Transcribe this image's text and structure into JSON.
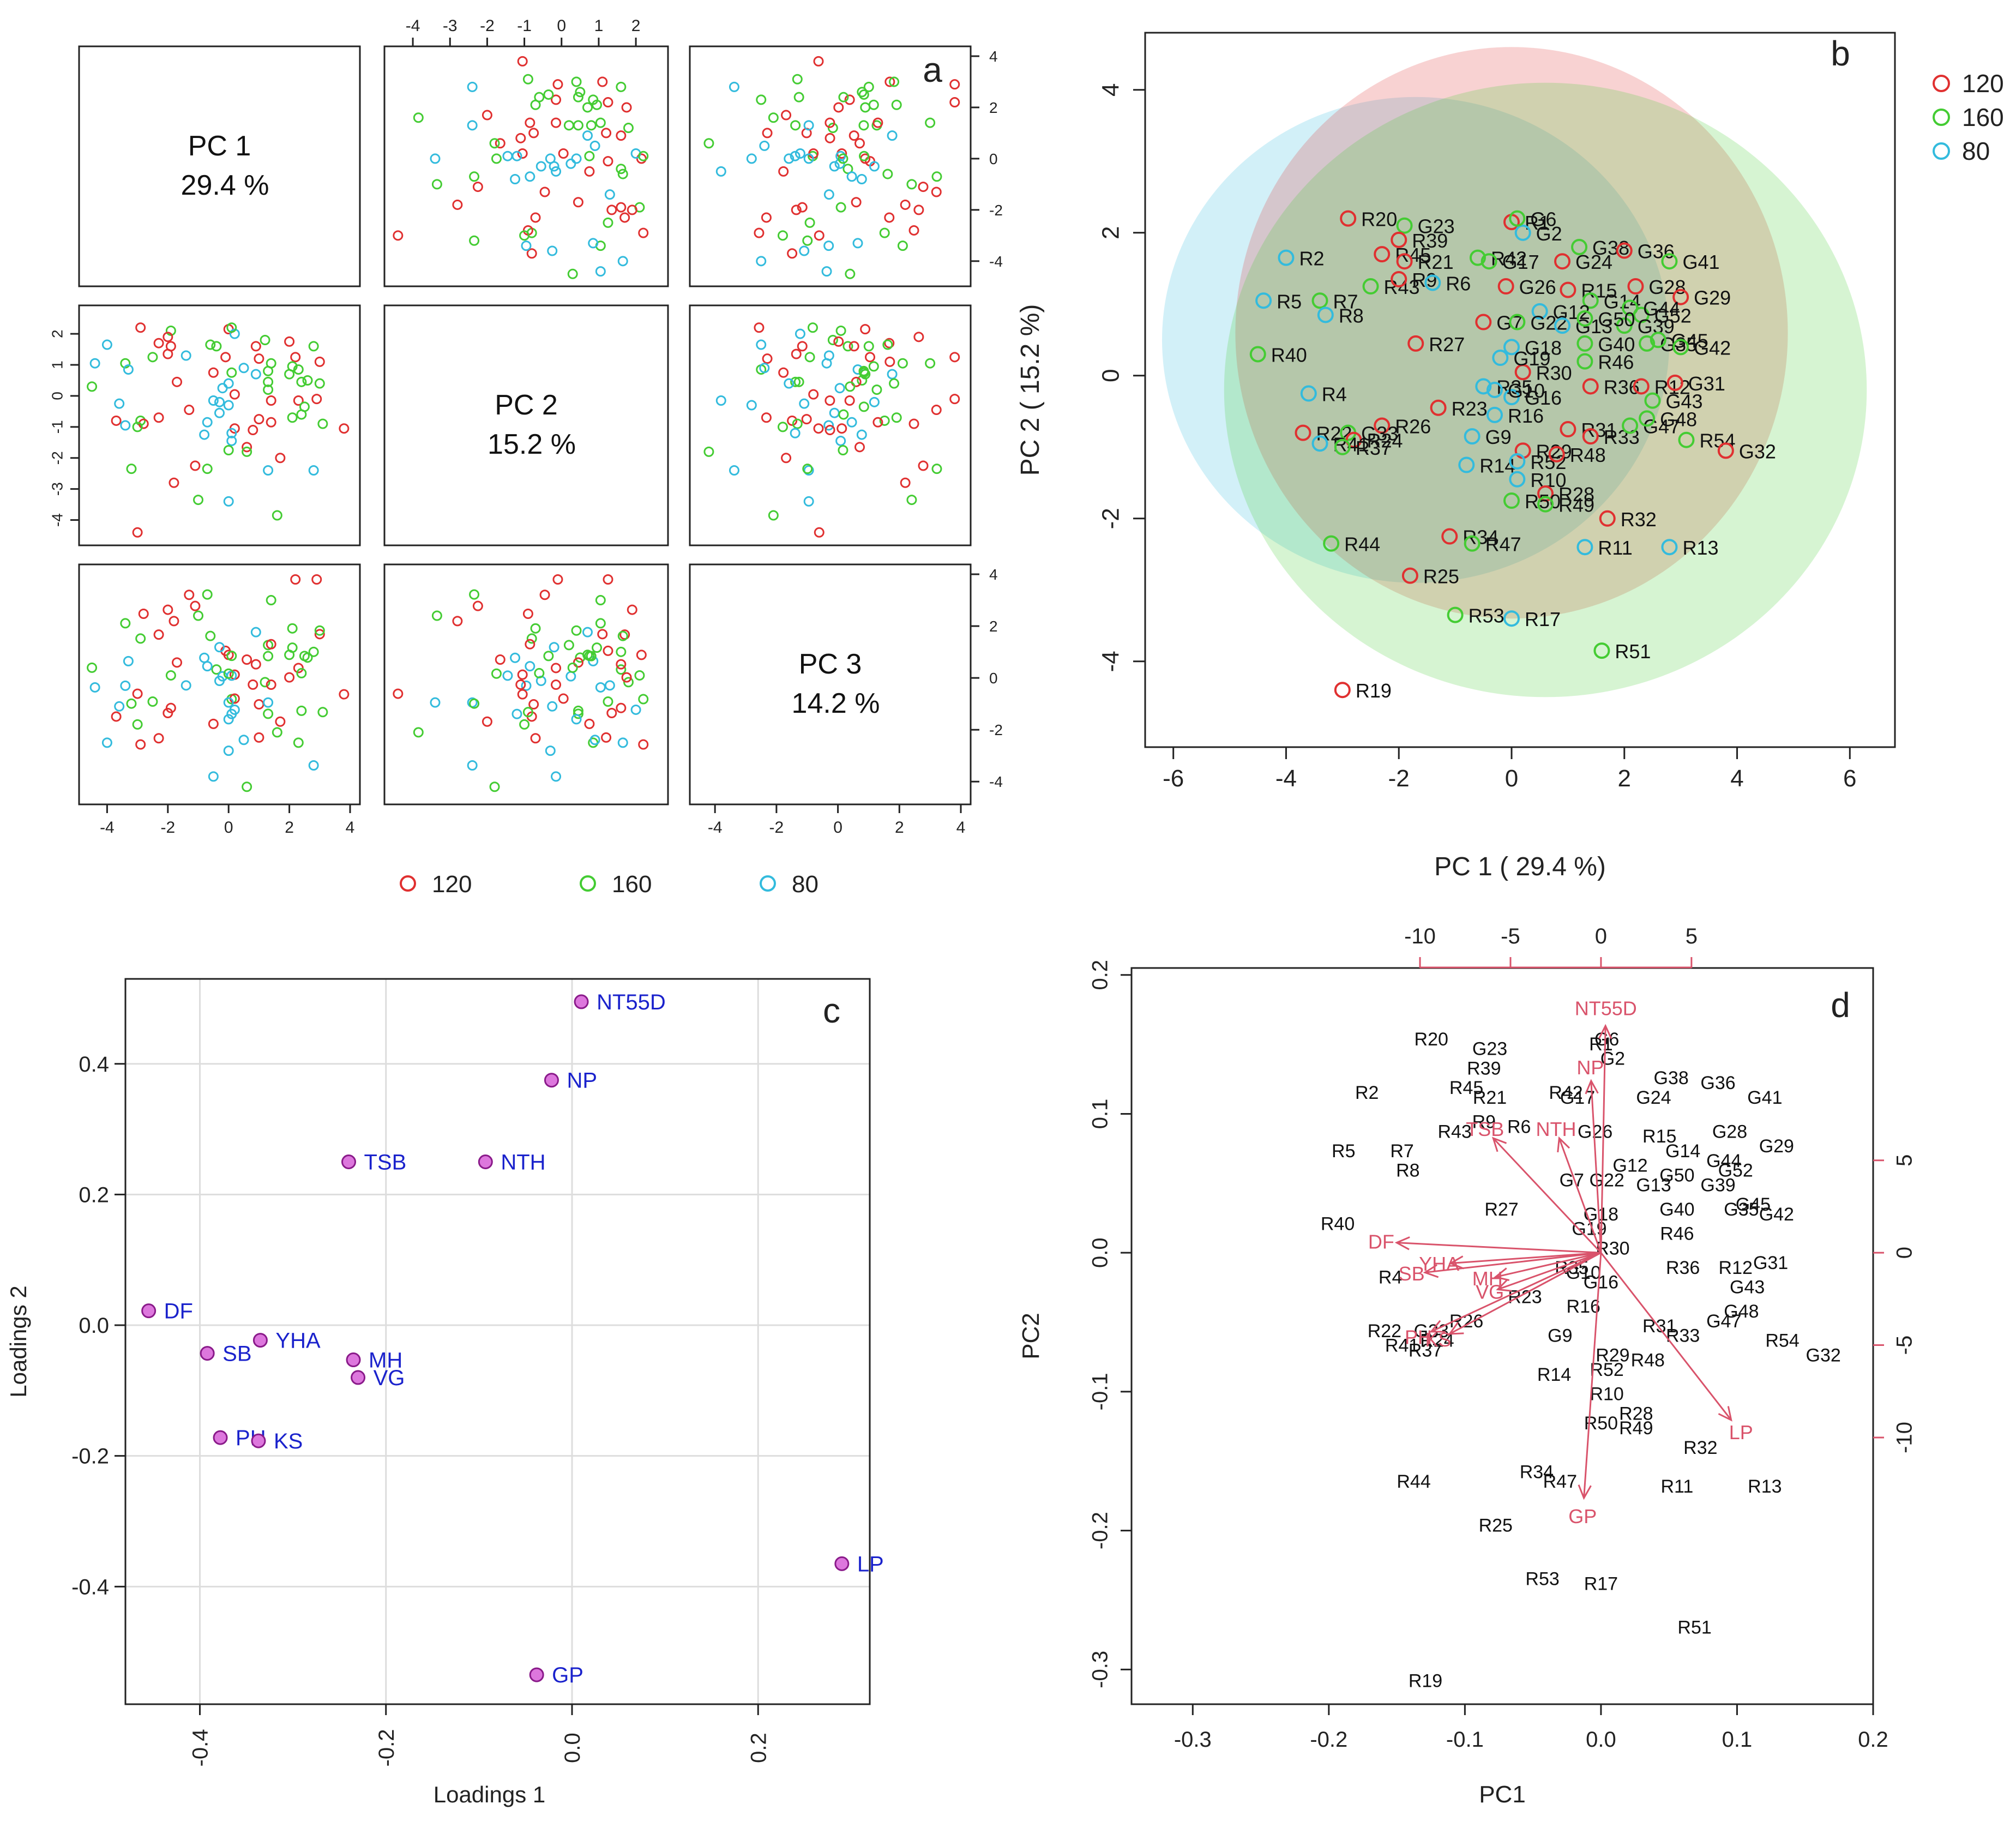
{
  "colors": {
    "group_120": "#e03030",
    "group_160": "#44cc33",
    "group_80": "#33bbdd",
    "loading_arrow": "#d9536b",
    "loading_label_c": "#1a22cc",
    "loading_point_fill": "#dd77dd",
    "loading_point_stroke": "#8a1a8a",
    "axis": "#222222",
    "grid": "#dddddd"
  },
  "chart_data": [
    {
      "panel": "a",
      "type": "scatter",
      "title": "Pairs plot of PC 1, PC 2, PC 3",
      "diag_labels": [
        {
          "name": "PC 1",
          "value": "29.4 %"
        },
        {
          "name": "PC 2",
          "value": "15.2 %"
        },
        {
          "name": "PC 3",
          "value": "14.2 %"
        }
      ],
      "pc1_ticks": [
        "-4",
        "-2",
        "0",
        "2",
        "4"
      ],
      "pc2_ticks": [
        "-4",
        "-3",
        "-2",
        "-1",
        "0",
        "1",
        "2"
      ],
      "pc3_ticks": [
        "-4",
        "-2",
        "0",
        "2",
        "4"
      ],
      "pc1_range": [
        -4.6,
        4.0
      ],
      "pc2_range": [
        -4.5,
        2.6
      ],
      "pc3_range": [
        -4.5,
        4.0
      ],
      "legend": [
        {
          "label": "120",
          "group": "120"
        },
        {
          "label": "160",
          "group": "160"
        },
        {
          "label": "80",
          "group": "80"
        }
      ]
    },
    {
      "panel": "b",
      "type": "scatter",
      "xlabel": "PC 1 ( 29.4 %)",
      "ylabel": "PC 2 ( 15.2 %)",
      "xlim": [
        -6.5,
        6.8
      ],
      "ylim": [
        -5.2,
        4.8
      ],
      "xticks": [
        -6,
        -4,
        -2,
        0,
        2,
        4,
        6
      ],
      "yticks": [
        -4,
        -2,
        0,
        2,
        4
      ],
      "legend": [
        {
          "label": "120",
          "group": "120"
        },
        {
          "label": "160",
          "group": "160"
        },
        {
          "label": "80",
          "group": "80"
        }
      ],
      "ellipses": [
        {
          "group": "80",
          "cx": -1.7,
          "cy": 0.5,
          "rx": 4.5,
          "ry": 3.4,
          "rot": 0
        },
        {
          "group": "120",
          "cx": 0.0,
          "cy": 0.6,
          "rx": 4.9,
          "ry": 4.0,
          "rot": 0
        },
        {
          "group": "160",
          "cx": 0.6,
          "cy": -0.2,
          "rx": 5.7,
          "ry": 4.3,
          "rot": 0
        }
      ],
      "points": [
        {
          "label": "R20",
          "group": "120",
          "x": -2.9,
          "y": 2.2
        },
        {
          "label": "G23",
          "group": "160",
          "x": -1.9,
          "y": 2.1
        },
        {
          "label": "R39",
          "group": "120",
          "x": -2.0,
          "y": 1.9
        },
        {
          "label": "R45",
          "group": "120",
          "x": -2.3,
          "y": 1.7
        },
        {
          "label": "R21",
          "group": "120",
          "x": -1.9,
          "y": 1.6
        },
        {
          "label": "R2",
          "group": "80",
          "x": -4.0,
          "y": 1.65
        },
        {
          "label": "R5",
          "group": "80",
          "x": -4.4,
          "y": 1.05
        },
        {
          "label": "R7",
          "group": "160",
          "x": -3.4,
          "y": 1.05
        },
        {
          "label": "R8",
          "group": "80",
          "x": -3.3,
          "y": 0.85
        },
        {
          "label": "R43",
          "group": "160",
          "x": -2.5,
          "y": 1.25
        },
        {
          "label": "R9",
          "group": "120",
          "x": -2.0,
          "y": 1.35
        },
        {
          "label": "R6",
          "group": "80",
          "x": -1.4,
          "y": 1.3
        },
        {
          "label": "R42",
          "group": "160",
          "x": -0.6,
          "y": 1.65
        },
        {
          "label": "R1",
          "group": "120",
          "x": 0.0,
          "y": 2.15
        },
        {
          "label": "G2",
          "group": "80",
          "x": 0.2,
          "y": 2.0
        },
        {
          "label": "G6",
          "group": "160",
          "x": 0.1,
          "y": 2.2
        },
        {
          "label": "G17",
          "group": "160",
          "x": -0.4,
          "y": 1.6
        },
        {
          "label": "G26",
          "group": "120",
          "x": -0.1,
          "y": 1.25
        },
        {
          "label": "G24",
          "group": "120",
          "x": 0.9,
          "y": 1.6
        },
        {
          "label": "G38",
          "group": "160",
          "x": 1.2,
          "y": 1.8
        },
        {
          "label": "G36",
          "group": "120",
          "x": 2.0,
          "y": 1.75
        },
        {
          "label": "G41",
          "group": "160",
          "x": 2.8,
          "y": 1.6
        },
        {
          "label": "G28",
          "group": "120",
          "x": 2.2,
          "y": 1.25
        },
        {
          "label": "G29",
          "group": "120",
          "x": 3.0,
          "y": 1.1
        },
        {
          "label": "R15",
          "group": "120",
          "x": 1.0,
          "y": 1.2
        },
        {
          "label": "G52",
          "group": "160",
          "x": 2.3,
          "y": 0.85
        },
        {
          "label": "G39",
          "group": "160",
          "x": 2.0,
          "y": 0.7
        },
        {
          "label": "G14",
          "group": "160",
          "x": 1.4,
          "y": 1.05
        },
        {
          "label": "G44",
          "group": "160",
          "x": 2.1,
          "y": 0.95
        },
        {
          "label": "G7",
          "group": "120",
          "x": -0.5,
          "y": 0.75
        },
        {
          "label": "G12",
          "group": "80",
          "x": 0.5,
          "y": 0.9
        },
        {
          "label": "G22",
          "group": "160",
          "x": 0.1,
          "y": 0.75
        },
        {
          "label": "G13",
          "group": "80",
          "x": 0.9,
          "y": 0.7
        },
        {
          "label": "G50",
          "group": "160",
          "x": 1.3,
          "y": 0.8
        },
        {
          "label": "G40",
          "group": "160",
          "x": 1.3,
          "y": 0.45
        },
        {
          "label": "G35",
          "group": "160",
          "x": 2.4,
          "y": 0.45
        },
        {
          "label": "G45",
          "group": "160",
          "x": 2.6,
          "y": 0.5
        },
        {
          "label": "G42",
          "group": "160",
          "x": 3.0,
          "y": 0.4
        },
        {
          "label": "R27",
          "group": "120",
          "x": -1.7,
          "y": 0.45
        },
        {
          "label": "G18",
          "group": "80",
          "x": 0.0,
          "y": 0.4
        },
        {
          "label": "R30",
          "group": "120",
          "x": 0.2,
          "y": 0.05
        },
        {
          "label": "G19",
          "group": "80",
          "x": -0.2,
          "y": 0.25
        },
        {
          "label": "R46",
          "group": "160",
          "x": 1.3,
          "y": 0.2
        },
        {
          "label": "R40",
          "group": "160",
          "x": -4.5,
          "y": 0.3
        },
        {
          "label": "R4",
          "group": "80",
          "x": -3.6,
          "y": -0.25
        },
        {
          "label": "R36",
          "group": "120",
          "x": 1.4,
          "y": -0.15
        },
        {
          "label": "R12",
          "group": "120",
          "x": 2.3,
          "y": -0.15
        },
        {
          "label": "G31",
          "group": "120",
          "x": 2.9,
          "y": -0.1
        },
        {
          "label": "G43",
          "group": "160",
          "x": 2.5,
          "y": -0.35
        },
        {
          "label": "R35",
          "group": "80",
          "x": -0.5,
          "y": -0.15
        },
        {
          "label": "G16",
          "group": "80",
          "x": 0.0,
          "y": -0.3
        },
        {
          "label": "G10",
          "group": "80",
          "x": -0.3,
          "y": -0.2
        },
        {
          "label": "R23",
          "group": "120",
          "x": -1.3,
          "y": -0.45
        },
        {
          "label": "R16",
          "group": "80",
          "x": -0.3,
          "y": -0.55
        },
        {
          "label": "R26",
          "group": "120",
          "x": -2.3,
          "y": -0.7
        },
        {
          "label": "R22",
          "group": "120",
          "x": -3.7,
          "y": -0.8
        },
        {
          "label": "G33",
          "group": "160",
          "x": -2.9,
          "y": -0.8
        },
        {
          "label": "R24",
          "group": "120",
          "x": -2.8,
          "y": -0.9
        },
        {
          "label": "R41",
          "group": "80",
          "x": -3.4,
          "y": -0.95
        },
        {
          "label": "R37",
          "group": "160",
          "x": -3.0,
          "y": -1.0
        },
        {
          "label": "R31",
          "group": "120",
          "x": 1.0,
          "y": -0.75
        },
        {
          "label": "R33",
          "group": "120",
          "x": 1.4,
          "y": -0.85
        },
        {
          "label": "G47",
          "group": "160",
          "x": 2.1,
          "y": -0.7
        },
        {
          "label": "G48",
          "group": "160",
          "x": 2.4,
          "y": -0.6
        },
        {
          "label": "R54",
          "group": "160",
          "x": 3.1,
          "y": -0.9
        },
        {
          "label": "G32",
          "group": "120",
          "x": 3.8,
          "y": -1.05
        },
        {
          "label": "G9",
          "group": "80",
          "x": -0.7,
          "y": -0.85
        },
        {
          "label": "R14",
          "group": "80",
          "x": -0.8,
          "y": -1.25
        },
        {
          "label": "R29",
          "group": "120",
          "x": 0.2,
          "y": -1.05
        },
        {
          "label": "R52",
          "group": "80",
          "x": 0.1,
          "y": -1.2
        },
        {
          "label": "R48",
          "group": "120",
          "x": 0.8,
          "y": -1.1
        },
        {
          "label": "R10",
          "group": "80",
          "x": 0.1,
          "y": -1.45
        },
        {
          "label": "R28",
          "group": "120",
          "x": 0.6,
          "y": -1.65
        },
        {
          "label": "R50",
          "group": "160",
          "x": 0.0,
          "y": -1.75
        },
        {
          "label": "R49",
          "group": "160",
          "x": 0.6,
          "y": -1.8
        },
        {
          "label": "R32",
          "group": "120",
          "x": 1.7,
          "y": -2.0
        },
        {
          "label": "R34",
          "group": "120",
          "x": -1.1,
          "y": -2.25
        },
        {
          "label": "R47",
          "group": "160",
          "x": -0.7,
          "y": -2.35
        },
        {
          "label": "R11",
          "group": "80",
          "x": 1.3,
          "y": -2.4
        },
        {
          "label": "R13",
          "group": "80",
          "x": 2.8,
          "y": -2.4
        },
        {
          "label": "R44",
          "group": "160",
          "x": -3.2,
          "y": -2.35
        },
        {
          "label": "R25",
          "group": "120",
          "x": -1.8,
          "y": -2.8
        },
        {
          "label": "R53",
          "group": "160",
          "x": -1.0,
          "y": -3.35
        },
        {
          "label": "R17",
          "group": "80",
          "x": 0.0,
          "y": -3.4
        },
        {
          "label": "R51",
          "group": "160",
          "x": 1.6,
          "y": -3.85
        },
        {
          "label": "R19",
          "group": "120",
          "x": -3.0,
          "y": -4.4
        }
      ]
    },
    {
      "panel": "c",
      "type": "scatter",
      "xlabel": "Loadings 1",
      "ylabel": "Loadings 2",
      "xlim": [
        -0.48,
        0.32
      ],
      "ylim": [
        -0.58,
        0.53
      ],
      "xticks": [
        "-0.4",
        "-0.2",
        "0.0",
        "0.2"
      ],
      "yticks": [
        "-0.4",
        "-0.2",
        "0.0",
        "0.2",
        "0.4"
      ],
      "grid": true,
      "points": [
        {
          "label": "NT55D",
          "x": 0.01,
          "y": 0.495
        },
        {
          "label": "NP",
          "x": -0.022,
          "y": 0.375
        },
        {
          "label": "TSB",
          "x": -0.24,
          "y": 0.25
        },
        {
          "label": "NTH",
          "x": -0.093,
          "y": 0.25
        },
        {
          "label": "DF",
          "x": -0.455,
          "y": 0.022
        },
        {
          "label": "SB",
          "x": -0.392,
          "y": -0.043
        },
        {
          "label": "YHA",
          "x": -0.335,
          "y": -0.023
        },
        {
          "label": "MH",
          "x": -0.235,
          "y": -0.053
        },
        {
          "label": "VG",
          "x": -0.23,
          "y": -0.08
        },
        {
          "label": "PH",
          "x": -0.378,
          "y": -0.172
        },
        {
          "label": "KS",
          "x": -0.337,
          "y": -0.177
        },
        {
          "label": "LP",
          "x": 0.29,
          "y": -0.365
        },
        {
          "label": "GP",
          "x": -0.038,
          "y": -0.535
        }
      ]
    },
    {
      "panel": "d",
      "type": "scatter",
      "subtype": "biplot",
      "xlabel": "PC1",
      "ylabel": "PC2",
      "xlim": [
        -0.345,
        0.2
      ],
      "ylim": [
        -0.325,
        0.205
      ],
      "xticks": [
        "-0.3",
        "-0.2",
        "-0.1",
        "0.0",
        "0.1",
        "0.2"
      ],
      "yticks": [
        "-0.3",
        "-0.2",
        "-0.1",
        "0.0",
        "0.1",
        "0.2"
      ],
      "top_ticks": [
        "-10",
        "-5",
        "0",
        "5"
      ],
      "right_ticks": [
        "-10",
        "-5",
        "0",
        "5"
      ],
      "loading_scale": 0.02,
      "arrows": [
        {
          "label": "NT55D",
          "x": 0.01,
          "y": 0.495
        },
        {
          "label": "NP",
          "x": -0.022,
          "y": 0.375
        },
        {
          "label": "NTH",
          "x": -0.093,
          "y": 0.25
        },
        {
          "label": "TSB",
          "x": -0.24,
          "y": 0.25
        },
        {
          "label": "DF",
          "x": -0.455,
          "y": 0.022
        },
        {
          "label": "SB",
          "x": -0.392,
          "y": -0.043
        },
        {
          "label": "YHA",
          "x": -0.335,
          "y": -0.023
        },
        {
          "label": "MH",
          "x": -0.235,
          "y": -0.053
        },
        {
          "label": "VG",
          "x": -0.23,
          "y": -0.08
        },
        {
          "label": "PH",
          "x": -0.378,
          "y": -0.172
        },
        {
          "label": "KS",
          "x": -0.337,
          "y": -0.177
        },
        {
          "label": "LP",
          "x": 0.29,
          "y": -0.365
        },
        {
          "label": "GP",
          "x": -0.038,
          "y": -0.535
        }
      ]
    }
  ]
}
